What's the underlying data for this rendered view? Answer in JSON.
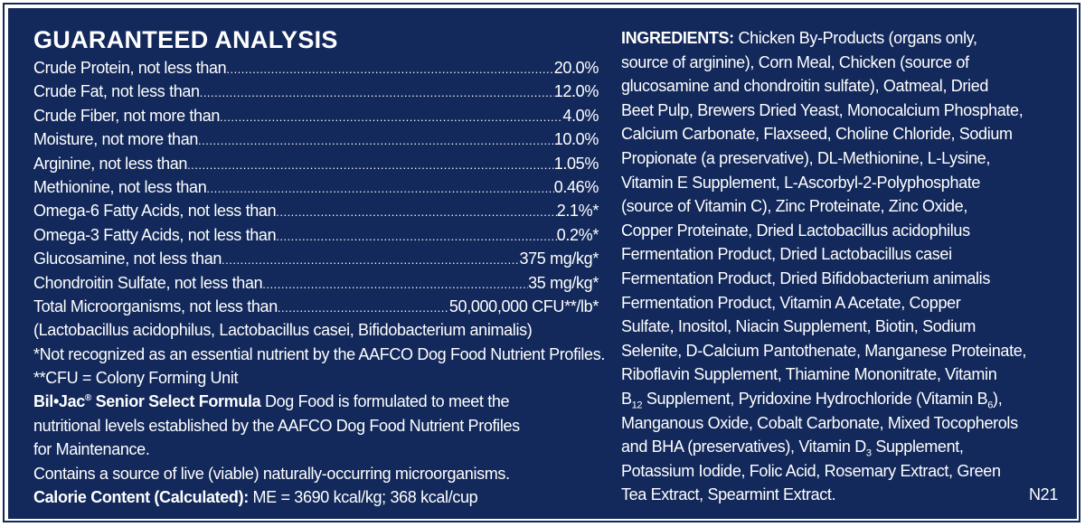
{
  "analysis": {
    "title": "GUARANTEED ANALYSIS",
    "rows": [
      {
        "label": "Crude Protein, not less than",
        "value": "20.0%"
      },
      {
        "label": "Crude Fat, not less than",
        "value": "12.0%"
      },
      {
        "label": "Crude Fiber, not more than",
        "value": "4.0%"
      },
      {
        "label": "Moisture, not more than",
        "value": "10.0%"
      },
      {
        "label": "Arginine, not less than",
        "value": "1.05%"
      },
      {
        "label": "Methionine, not less than",
        "value": "0.46%"
      },
      {
        "label": "Omega-6 Fatty Acids, not less than",
        "value": "2.1%*"
      },
      {
        "label": "Omega-3 Fatty Acids, not less than",
        "value": "0.2%*"
      },
      {
        "label": "Glucosamine, not less than",
        "value": "375 mg/kg*"
      },
      {
        "label": "Chondroitin Sulfate, not less than",
        "value": "35 mg/kg*"
      },
      {
        "label": "Total Microorganisms, not less than",
        "value": "50,000,000 CFU**/lb*"
      }
    ],
    "microorganisms": "(Lactobacillus acidophilus, Lactobacillus casei, Bifidobacterium animalis)",
    "footnote1": "*Not recognized as an essential nutrient by the AAFCO Dog Food Nutrient Profiles.",
    "footnote2": "**CFU = Colony Forming Unit",
    "brand": "Bil•Jac",
    "brand_mark": "®",
    "formula": "Senior Select Formula",
    "statement_line1": "Dog Food is formulated to meet the",
    "statement_line2": "nutritional levels established by the AAFCO Dog Food Nutrient Profiles",
    "statement_line3": "for Maintenance.",
    "live_note": "Contains a source of live (viable) naturally-occurring microorganisms.",
    "calorie_label": "Calorie Content (Calculated):",
    "calorie_value": "ME = 3690 kcal/kg; 368 kcal/cup"
  },
  "ingredients": {
    "label": "INGREDIENTS:",
    "first_line": "Chicken By-Products (organs only,",
    "lines": [
      "source of arginine), Corn Meal, Chicken (source of",
      "glucosamine and chondroitin sulfate), Oatmeal, Dried",
      "Beet Pulp, Brewers Dried Yeast, Monocalcium Phosphate,",
      "Calcium Carbonate, Flaxseed, Choline Chloride, Sodium",
      "Propionate (a preservative), DL-Methionine, L-Lysine,",
      "Vitamin E Supplement, L-Ascorbyl-2-Polyphosphate",
      "(source of Vitamin C), Zinc Proteinate, Zinc Oxide,",
      "Copper Proteinate, Dried Lactobacillus acidophilus",
      "Fermentation Product, Dried Lactobacillus casei",
      "Fermentation Product, Dried Bifidobacterium animalis",
      "Fermentation Product, Vitamin A Acetate, Copper",
      "Sulfate, Inositol, Niacin Supplement, Biotin, Sodium",
      "Selenite, D-Calcium Pantothenate, Manganese Proteinate,",
      "Riboflavin Supplement, Thiamine Mononitrate, Vitamin"
    ],
    "b12_a": "B",
    "b12_sub": "12",
    "b12_b": " Supplement, Pyridoxine Hydrochloride (Vitamin B",
    "b6_sub": "6",
    "b12_c": "),",
    "line17": "Manganous Oxide, Cobalt Carbonate, Mixed Tocopherols",
    "d3_a": "and BHA (preservatives), Vitamin D",
    "d3_sub": "3",
    "d3_b": " Supplement,",
    "line19": "Potassium Iodide, Folic Acid, Rosemary Extract, Green",
    "last_line": "Tea Extract, Spearmint Extract.",
    "code": "N21"
  }
}
